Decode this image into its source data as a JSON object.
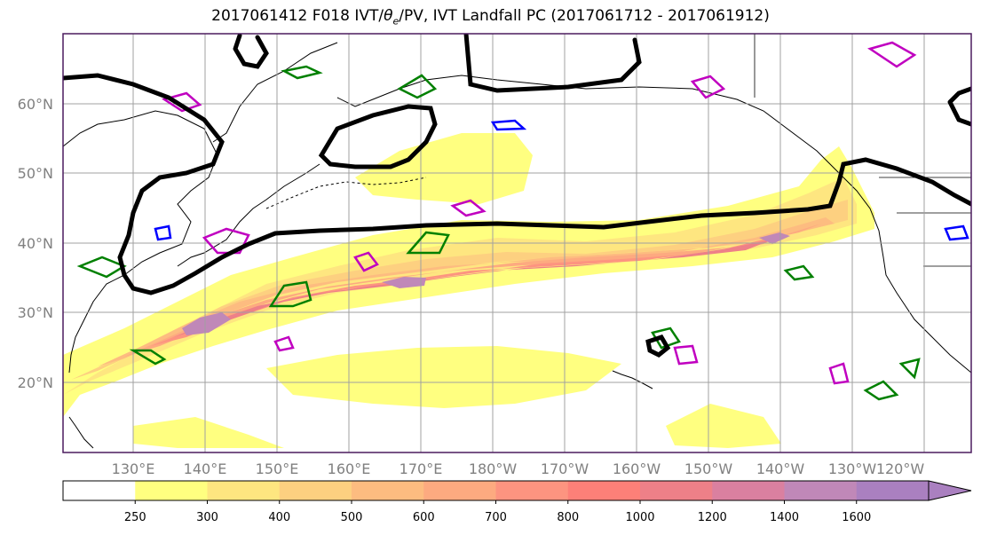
{
  "title": {
    "prefix": "2017061412 F018 IVT/",
    "theta": "θ",
    "theta_sub": "e",
    "suffix": "/PV, IVT Landfall PC (2017061712 - 2017061912)"
  },
  "lat_labels": [
    "60°N",
    "50°N",
    "40°N",
    "30°N",
    "20°N"
  ],
  "lon_labels": [
    "130°E",
    "140°E",
    "150°E",
    "160°E",
    "170°E",
    "180°W",
    "170°W",
    "160°W",
    "150°W",
    "140°W",
    "130°W",
    "120°W"
  ],
  "colorbar": {
    "ticks": [
      "250",
      "300",
      "400",
      "500",
      "600",
      "700",
      "800",
      "1000",
      "1200",
      "1400",
      "1600"
    ],
    "colors": [
      "#ffffff",
      "#ffff80",
      "#fee680",
      "#fdd080",
      "#fdbc80",
      "#fdaa80",
      "#fd9480",
      "#fd8078",
      "#ee8088",
      "#da80a0",
      "#c088b8",
      "#aa80c0"
    ]
  },
  "colors": {
    "frame": "#4b1c5e",
    "grid": "#a0a0a0",
    "pv_contour": "#008000",
    "theta_contour_a": "#c000c0",
    "theta_contour_b": "#0000ff",
    "pc_contour": "#000000"
  }
}
